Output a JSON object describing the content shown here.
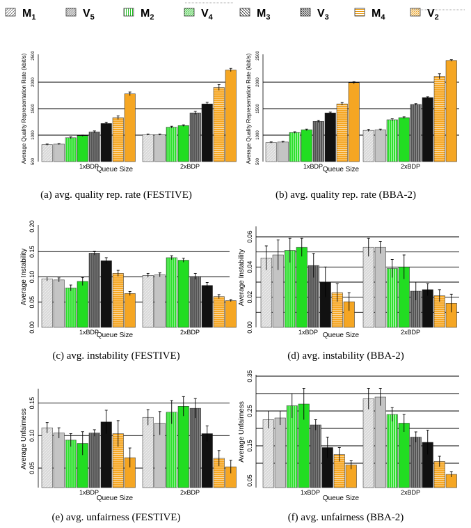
{
  "legend": {
    "entries": [
      {
        "label": "M",
        "sub": "1",
        "pattern": "m1",
        "color": "#d8d8d8"
      },
      {
        "label": "V",
        "sub": "5",
        "pattern": "v5",
        "color": "#d8d8d8"
      },
      {
        "label": "M",
        "sub": "2",
        "pattern": "m2",
        "color": "#2ee02e"
      },
      {
        "label": "V",
        "sub": "4",
        "pattern": "v4",
        "color": "#2ee02e"
      },
      {
        "label": "M",
        "sub": "3",
        "pattern": "m3",
        "color": "#404040"
      },
      {
        "label": "V",
        "sub": "3",
        "pattern": "v3",
        "color": "#404040"
      },
      {
        "label": "M",
        "sub": "4",
        "pattern": "m4",
        "color": "#f5a623"
      },
      {
        "label": "V",
        "sub": "2",
        "pattern": "v2",
        "color": "#f5a623"
      }
    ]
  },
  "colors": {
    "gray_fill": "#d8d8d8",
    "gray_solid": "#bdbdbd",
    "green_fill": "#2ee02e",
    "green_solid": "#22dd22",
    "dark_fill": "#404040",
    "dark_solid": "#111111",
    "orange_fill": "#f5a623",
    "orange_solid": "#f5a623"
  },
  "chart_data": [
    {
      "id": "a",
      "type": "bar",
      "caption": "(a) avg. quality rep. rate (FESTIVE)",
      "xlabel": "Queue Size",
      "ylabel": "Average Quality Representation Rate (kbit/s)",
      "categories": [
        "1xBDP",
        "2xBDP"
      ],
      "ylim": [
        500,
        2500
      ],
      "yticks": [
        500,
        1000,
        1500,
        2000,
        2500
      ],
      "yticklabels": [
        "500",
        "1000",
        "1500",
        "2000",
        "2500"
      ],
      "grid": [
        1000,
        1500,
        2000
      ],
      "series": [
        {
          "name": "M1",
          "values": [
            820,
            1010
          ],
          "err": [
            12,
            12
          ]
        },
        {
          "name": "V5",
          "values": [
            830,
            1010
          ],
          "err": [
            10,
            12
          ]
        },
        {
          "name": "M2",
          "values": [
            950,
            1150
          ],
          "err": [
            18,
            18
          ]
        },
        {
          "name": "V4",
          "values": [
            990,
            1180
          ],
          "err": [
            12,
            15
          ]
        },
        {
          "name": "M3",
          "values": [
            1060,
            1420
          ],
          "err": [
            20,
            30
          ]
        },
        {
          "name": "V3",
          "values": [
            1220,
            1590
          ],
          "err": [
            25,
            30
          ]
        },
        {
          "name": "M4",
          "values": [
            1330,
            1900
          ],
          "err": [
            35,
            55
          ]
        },
        {
          "name": "V2",
          "values": [
            1780,
            2230
          ],
          "err": [
            35,
            30
          ]
        }
      ]
    },
    {
      "id": "b",
      "type": "bar",
      "caption": "(b) avg. quality rep. rate (BBA-2)",
      "xlabel": "Queue Size",
      "ylabel": "Average Quality Representation Rate (kbit/s)",
      "categories": [
        "1xBDP",
        "2xBDP"
      ],
      "ylim": [
        500,
        2500
      ],
      "yticks": [
        500,
        1000,
        1500,
        2000,
        2500
      ],
      "yticklabels": [
        "500",
        "1000",
        "1500",
        "2000",
        "2500"
      ],
      "grid": [
        1000,
        1500,
        2000
      ],
      "series": [
        {
          "name": "M1",
          "values": [
            860,
            1090
          ],
          "err": [
            12,
            20
          ]
        },
        {
          "name": "V5",
          "values": [
            870,
            1100
          ],
          "err": [
            12,
            15
          ]
        },
        {
          "name": "M2",
          "values": [
            1050,
            1290
          ],
          "err": [
            15,
            20
          ]
        },
        {
          "name": "V4",
          "values": [
            1100,
            1330
          ],
          "err": [
            15,
            15
          ]
        },
        {
          "name": "M3",
          "values": [
            1260,
            1580
          ],
          "err": [
            20,
            15
          ]
        },
        {
          "name": "V3",
          "values": [
            1420,
            1710
          ],
          "err": [
            15,
            15
          ]
        },
        {
          "name": "M4",
          "values": [
            1590,
            2110
          ],
          "err": [
            25,
            50
          ]
        },
        {
          "name": "V2",
          "values": [
            1990,
            2410
          ],
          "err": [
            20,
            15
          ]
        }
      ]
    },
    {
      "id": "c",
      "type": "bar",
      "caption": "(c) avg. instability (FESTIVE)",
      "xlabel": "Queue Size",
      "ylabel": "Average Instability",
      "categories": [
        "1xBDP",
        "2xBDP"
      ],
      "ylim": [
        0,
        0.2
      ],
      "yticks": [
        0,
        0.05,
        0.1,
        0.15,
        0.2
      ],
      "yticklabels": [
        "0.00",
        "0.05",
        "0.10",
        "0.15",
        "0.20"
      ],
      "grid": [
        0.05,
        0.1,
        0.15
      ],
      "series": [
        {
          "name": "M1",
          "values": [
            0.096,
            0.103
          ],
          "err": [
            0.004,
            0.004
          ]
        },
        {
          "name": "V5",
          "values": [
            0.094,
            0.104
          ],
          "err": [
            0.004,
            0.004
          ]
        },
        {
          "name": "M2",
          "values": [
            0.078,
            0.138
          ],
          "err": [
            0.006,
            0.004
          ]
        },
        {
          "name": "V4",
          "values": [
            0.091,
            0.133
          ],
          "err": [
            0.008,
            0.004
          ]
        },
        {
          "name": "M3",
          "values": [
            0.147,
            0.101
          ],
          "err": [
            0.004,
            0.006
          ]
        },
        {
          "name": "V3",
          "values": [
            0.132,
            0.083
          ],
          "err": [
            0.006,
            0.006
          ]
        },
        {
          "name": "M4",
          "values": [
            0.107,
            0.061
          ],
          "err": [
            0.006,
            0.004
          ]
        },
        {
          "name": "V2",
          "values": [
            0.067,
            0.053
          ],
          "err": [
            0.004,
            0.002
          ]
        }
      ]
    },
    {
      "id": "d",
      "type": "bar",
      "caption": "(d) avg. instability (BBA-2)",
      "xlabel": "Queue Size",
      "ylabel": "Average Instability",
      "categories": [
        "1xBDP",
        "2xBDP"
      ],
      "ylim": [
        0,
        0.066
      ],
      "yticks": [
        0,
        0.02,
        0.04,
        0.06
      ],
      "yticklabels": [
        "0.00",
        "0.02",
        "0.04",
        "0.06"
      ],
      "grid": [
        0.01,
        0.02,
        0.03,
        0.04,
        0.05,
        0.06
      ],
      "series": [
        {
          "name": "M1",
          "values": [
            0.046,
            0.053
          ],
          "err": [
            0.008,
            0.006
          ]
        },
        {
          "name": "V5",
          "values": [
            0.048,
            0.053
          ],
          "err": [
            0.01,
            0.004
          ]
        },
        {
          "name": "M2",
          "values": [
            0.051,
            0.039
          ],
          "err": [
            0.008,
            0.006
          ]
        },
        {
          "name": "V4",
          "values": [
            0.053,
            0.04
          ],
          "err": [
            0.006,
            0.008
          ]
        },
        {
          "name": "M3",
          "values": [
            0.041,
            0.024
          ],
          "err": [
            0.008,
            0.006
          ]
        },
        {
          "name": "V3",
          "values": [
            0.03,
            0.025
          ],
          "err": [
            0.01,
            0.004
          ]
        },
        {
          "name": "M4",
          "values": [
            0.023,
            0.021
          ],
          "err": [
            0.006,
            0.004
          ]
        },
        {
          "name": "V2",
          "values": [
            0.017,
            0.016
          ],
          "err": [
            0.006,
            0.006
          ]
        }
      ]
    },
    {
      "id": "e",
      "type": "bar",
      "caption": "(e) avg. unfairness (FESTIVE)",
      "xlabel": "Queue Size",
      "ylabel": "Average Unfairness",
      "categories": [
        "1xBDP",
        "2xBDP"
      ],
      "ylim": [
        0.02,
        0.17
      ],
      "yticks": [
        0.05,
        0.1,
        0.15
      ],
      "yticklabels": [
        "0.05",
        "0.10",
        "0.15"
      ],
      "grid": [
        0.05,
        0.1,
        0.15
      ],
      "series": [
        {
          "name": "M1",
          "values": [
            0.112,
            0.128
          ],
          "err": [
            0.008,
            0.012
          ]
        },
        {
          "name": "V5",
          "values": [
            0.104,
            0.119
          ],
          "err": [
            0.008,
            0.018
          ]
        },
        {
          "name": "M2",
          "values": [
            0.093,
            0.136
          ],
          "err": [
            0.01,
            0.018
          ]
        },
        {
          "name": "V4",
          "values": [
            0.088,
            0.145
          ],
          "err": [
            0.018,
            0.015
          ]
        },
        {
          "name": "M3",
          "values": [
            0.104,
            0.142
          ],
          "err": [
            0.005,
            0.015
          ]
        },
        {
          "name": "V3",
          "values": [
            0.121,
            0.103
          ],
          "err": [
            0.018,
            0.012
          ]
        },
        {
          "name": "M4",
          "values": [
            0.103,
            0.065
          ],
          "err": [
            0.02,
            0.012
          ]
        },
        {
          "name": "V2",
          "values": [
            0.066,
            0.052
          ],
          "err": [
            0.015,
            0.01
          ]
        }
      ]
    },
    {
      "id": "f",
      "type": "bar",
      "caption": "(f) avg. unfairness (BBA-2)",
      "xlabel": "Queue Size",
      "ylabel": "Average Unfairness",
      "categories": [
        "1xBDP",
        "2xBDP"
      ],
      "ylim": [
        0.03,
        0.35
      ],
      "yticks": [
        0.05,
        0.15,
        0.25,
        0.35
      ],
      "yticklabels": [
        "0.05",
        "0.15",
        "0.25",
        "0.35"
      ],
      "grid": [
        0.1,
        0.15,
        0.2,
        0.25,
        0.3,
        0.35
      ],
      "series": [
        {
          "name": "M1",
          "values": [
            0.225,
            0.285
          ],
          "err": [
            0.025,
            0.03
          ]
        },
        {
          "name": "V5",
          "values": [
            0.23,
            0.29
          ],
          "err": [
            0.02,
            0.025
          ]
        },
        {
          "name": "M2",
          "values": [
            0.265,
            0.24
          ],
          "err": [
            0.035,
            0.02
          ]
        },
        {
          "name": "V4",
          "values": [
            0.27,
            0.215
          ],
          "err": [
            0.045,
            0.025
          ]
        },
        {
          "name": "M3",
          "values": [
            0.21,
            0.175
          ],
          "err": [
            0.015,
            0.015
          ]
        },
        {
          "name": "V3",
          "values": [
            0.145,
            0.16
          ],
          "err": [
            0.03,
            0.035
          ]
        },
        {
          "name": "M4",
          "values": [
            0.125,
            0.105
          ],
          "err": [
            0.02,
            0.015
          ]
        },
        {
          "name": "V2",
          "values": [
            0.095,
            0.068
          ],
          "err": [
            0.012,
            0.008
          ]
        }
      ]
    }
  ]
}
